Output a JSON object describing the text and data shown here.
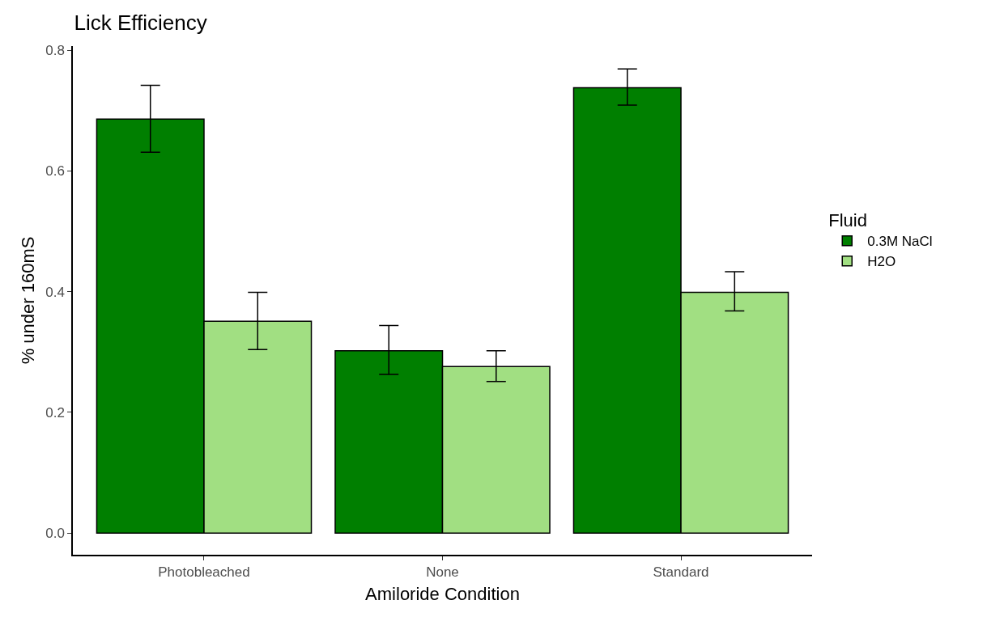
{
  "chart_data": {
    "type": "bar",
    "title": "Lick Efficiency",
    "xlabel": "Amiloride Condition",
    "ylabel": "% under 160mS",
    "legend_title": "Fluid",
    "categories": [
      "Photobleached",
      "None",
      "Standard"
    ],
    "series": [
      {
        "name": "0.3M NaCl",
        "color": "#007f00",
        "values": [
          0.686,
          0.302,
          0.738
        ],
        "errors": [
          [
            0.631,
            0.742
          ],
          [
            0.263,
            0.344
          ],
          [
            0.709,
            0.769
          ]
        ]
      },
      {
        "name": "H2O",
        "color": "#a1df82",
        "values": [
          0.351,
          0.276,
          0.399
        ],
        "errors": [
          [
            0.304,
            0.399
          ],
          [
            0.251,
            0.302
          ],
          [
            0.368,
            0.433
          ]
        ]
      }
    ],
    "ylim": [
      -0.036,
      0.807
    ],
    "yticks": [
      {
        "value": 0,
        "label": "0.0"
      },
      {
        "value": 0.2,
        "label": "0.2"
      },
      {
        "value": 0.4,
        "label": "0.4"
      },
      {
        "value": 0.6,
        "label": "0.6"
      },
      {
        "value": 0.8,
        "label": "0.8"
      }
    ],
    "grid": false,
    "legend": "right"
  }
}
